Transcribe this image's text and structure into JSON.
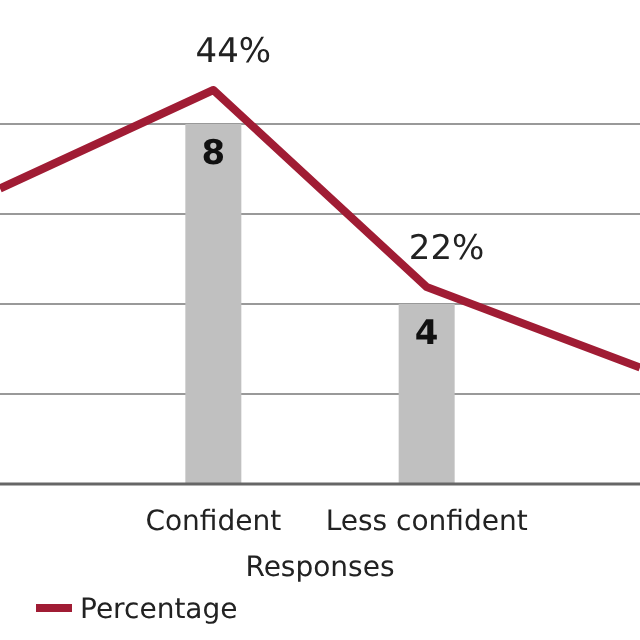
{
  "chart_data": {
    "type": "bar",
    "xlabel": "Responses",
    "categories": [
      null,
      "Confident",
      "Less confident",
      null
    ],
    "series": [
      {
        "color": "#c0c0c0",
        "values": [
          null,
          8,
          4,
          null
        ]
      },
      {
        "type": "line",
        "name": "Percentage",
        "color": "#a01c34",
        "axis": "y2",
        "values": [
          33,
          44,
          22,
          13
        ],
        "value_labels": [
          null,
          "44%",
          "22%",
          null
        ]
      }
    ],
    "data_labels": true,
    "yticks": [
      {
        "value": 2,
        "label": null
      },
      {
        "value": 4,
        "label": null
      },
      {
        "value": 6,
        "label": null
      },
      {
        "value": 8,
        "label": null
      }
    ],
    "grid": "y",
    "tick_labels": "x",
    "legend": "bottom left"
  }
}
